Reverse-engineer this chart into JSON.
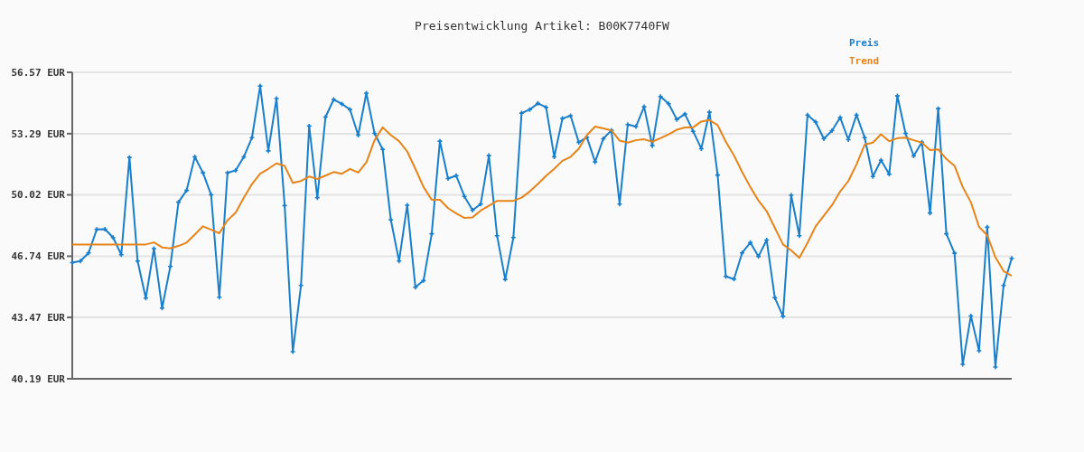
{
  "chart_data": {
    "type": "line",
    "title": "Preisentwicklung Artikel: B00K7740FW",
    "categories": [
      null,
      null,
      null,
      null,
      null,
      null,
      null,
      null,
      null,
      null,
      null,
      null,
      null,
      null,
      null,
      null,
      null,
      null,
      null,
      null,
      null,
      null,
      null,
      null,
      null,
      null,
      null,
      null,
      null,
      null,
      null,
      null,
      null,
      null,
      null,
      null,
      null,
      null,
      null,
      null,
      null,
      null,
      null,
      null,
      null,
      null,
      null,
      null,
      null,
      null,
      null,
      null,
      null,
      null,
      null,
      null,
      null,
      null,
      null,
      null,
      null,
      null,
      null,
      null,
      null,
      null,
      null,
      null,
      null,
      null,
      null,
      null,
      null,
      null,
      null,
      null,
      null,
      null,
      null,
      null,
      null,
      null,
      null,
      null,
      null,
      null,
      null,
      null,
      null,
      null,
      null,
      null,
      null,
      null,
      null,
      null,
      null,
      null,
      null,
      null,
      null,
      null,
      null,
      null,
      null,
      null,
      null,
      null,
      null,
      null,
      null,
      null,
      null,
      null,
      null,
      null
    ],
    "ylim": [
      40.19,
      56.57
    ],
    "yticks": [
      {
        "value": 40.19,
        "label": "40.19 EUR"
      },
      {
        "value": 43.47,
        "label": "43.47 EUR"
      },
      {
        "value": 46.74,
        "label": "46.74 EUR"
      },
      {
        "value": 50.02,
        "label": "50.02 EUR"
      },
      {
        "value": 53.29,
        "label": "53.29 EUR"
      },
      {
        "value": 56.57,
        "label": "56.57 EUR"
      }
    ],
    "grid": "y",
    "legend": "top right",
    "series": [
      {
        "name": "Preis",
        "color": "#1a7fcb",
        "marker": "cross",
        "values": [
          46.4,
          46.48,
          46.92,
          48.18,
          48.19,
          47.74,
          46.82,
          52.02,
          46.48,
          44.5,
          47.15,
          43.97,
          46.19,
          49.63,
          50.26,
          52.05,
          51.2,
          50.02,
          44.55,
          51.2,
          51.33,
          52.05,
          53.08,
          55.84,
          52.37,
          55.17,
          49.45,
          41.64,
          45.18,
          53.7,
          49.87,
          54.18,
          55.12,
          54.88,
          54.58,
          53.21,
          55.46,
          53.31,
          52.45,
          48.68,
          46.48,
          49.47,
          45.08,
          45.44,
          47.94,
          52.89,
          50.89,
          51.05,
          49.94,
          49.2,
          49.53,
          52.12,
          47.84,
          45.5,
          47.74,
          54.39,
          54.58,
          54.91,
          54.7,
          52.05,
          54.1,
          54.25,
          52.83,
          53.1,
          51.78,
          53.02,
          53.47,
          49.53,
          53.78,
          53.67,
          54.73,
          52.65,
          55.28,
          54.89,
          54.05,
          54.34,
          53.42,
          52.49,
          54.44,
          51.08,
          45.66,
          45.52,
          46.92,
          47.47,
          46.73,
          47.61,
          44.52,
          43.53,
          50.0,
          47.84,
          54.29,
          53.91,
          53.02,
          53.45,
          54.15,
          52.97,
          54.29,
          53.08,
          51.0,
          51.87,
          51.13,
          55.31,
          53.31,
          52.1,
          52.84,
          49.05,
          54.63,
          47.94,
          46.9,
          40.96,
          43.55,
          41.69,
          48.29,
          40.82,
          45.18,
          46.63
        ]
      },
      {
        "name": "Trend",
        "color": "#e6841a",
        "marker": "none",
        "values": [
          47.37,
          47.37,
          47.37,
          47.37,
          47.37,
          47.37,
          47.37,
          47.37,
          47.37,
          47.37,
          47.48,
          47.21,
          47.16,
          47.29,
          47.47,
          47.9,
          48.34,
          48.16,
          47.97,
          48.66,
          49.07,
          49.87,
          50.6,
          51.15,
          51.41,
          51.7,
          51.57,
          50.66,
          50.76,
          51.0,
          50.87,
          51.05,
          51.24,
          51.15,
          51.41,
          51.21,
          51.76,
          52.94,
          53.63,
          53.21,
          52.89,
          52.34,
          51.41,
          50.44,
          49.76,
          49.76,
          49.31,
          49.03,
          48.79,
          48.82,
          49.18,
          49.44,
          49.7,
          49.7,
          49.7,
          49.87,
          50.2,
          50.6,
          51.04,
          51.41,
          51.84,
          52.05,
          52.49,
          53.21,
          53.67,
          53.57,
          53.47,
          52.92,
          52.81,
          52.94,
          52.99,
          52.86,
          53.05,
          53.25,
          53.5,
          53.62,
          53.63,
          53.94,
          54.02,
          53.75,
          52.86,
          52.13,
          51.24,
          50.44,
          49.71,
          49.15,
          48.26,
          47.37,
          47.05,
          46.65,
          47.45,
          48.34,
          48.9,
          49.47,
          50.2,
          50.76,
          51.65,
          52.7,
          52.81,
          53.26,
          52.89,
          53.05,
          53.08,
          52.94,
          52.81,
          52.42,
          52.45,
          51.94,
          51.57,
          50.44,
          49.63,
          48.31,
          47.86,
          46.69,
          45.95,
          45.69
        ]
      }
    ]
  }
}
